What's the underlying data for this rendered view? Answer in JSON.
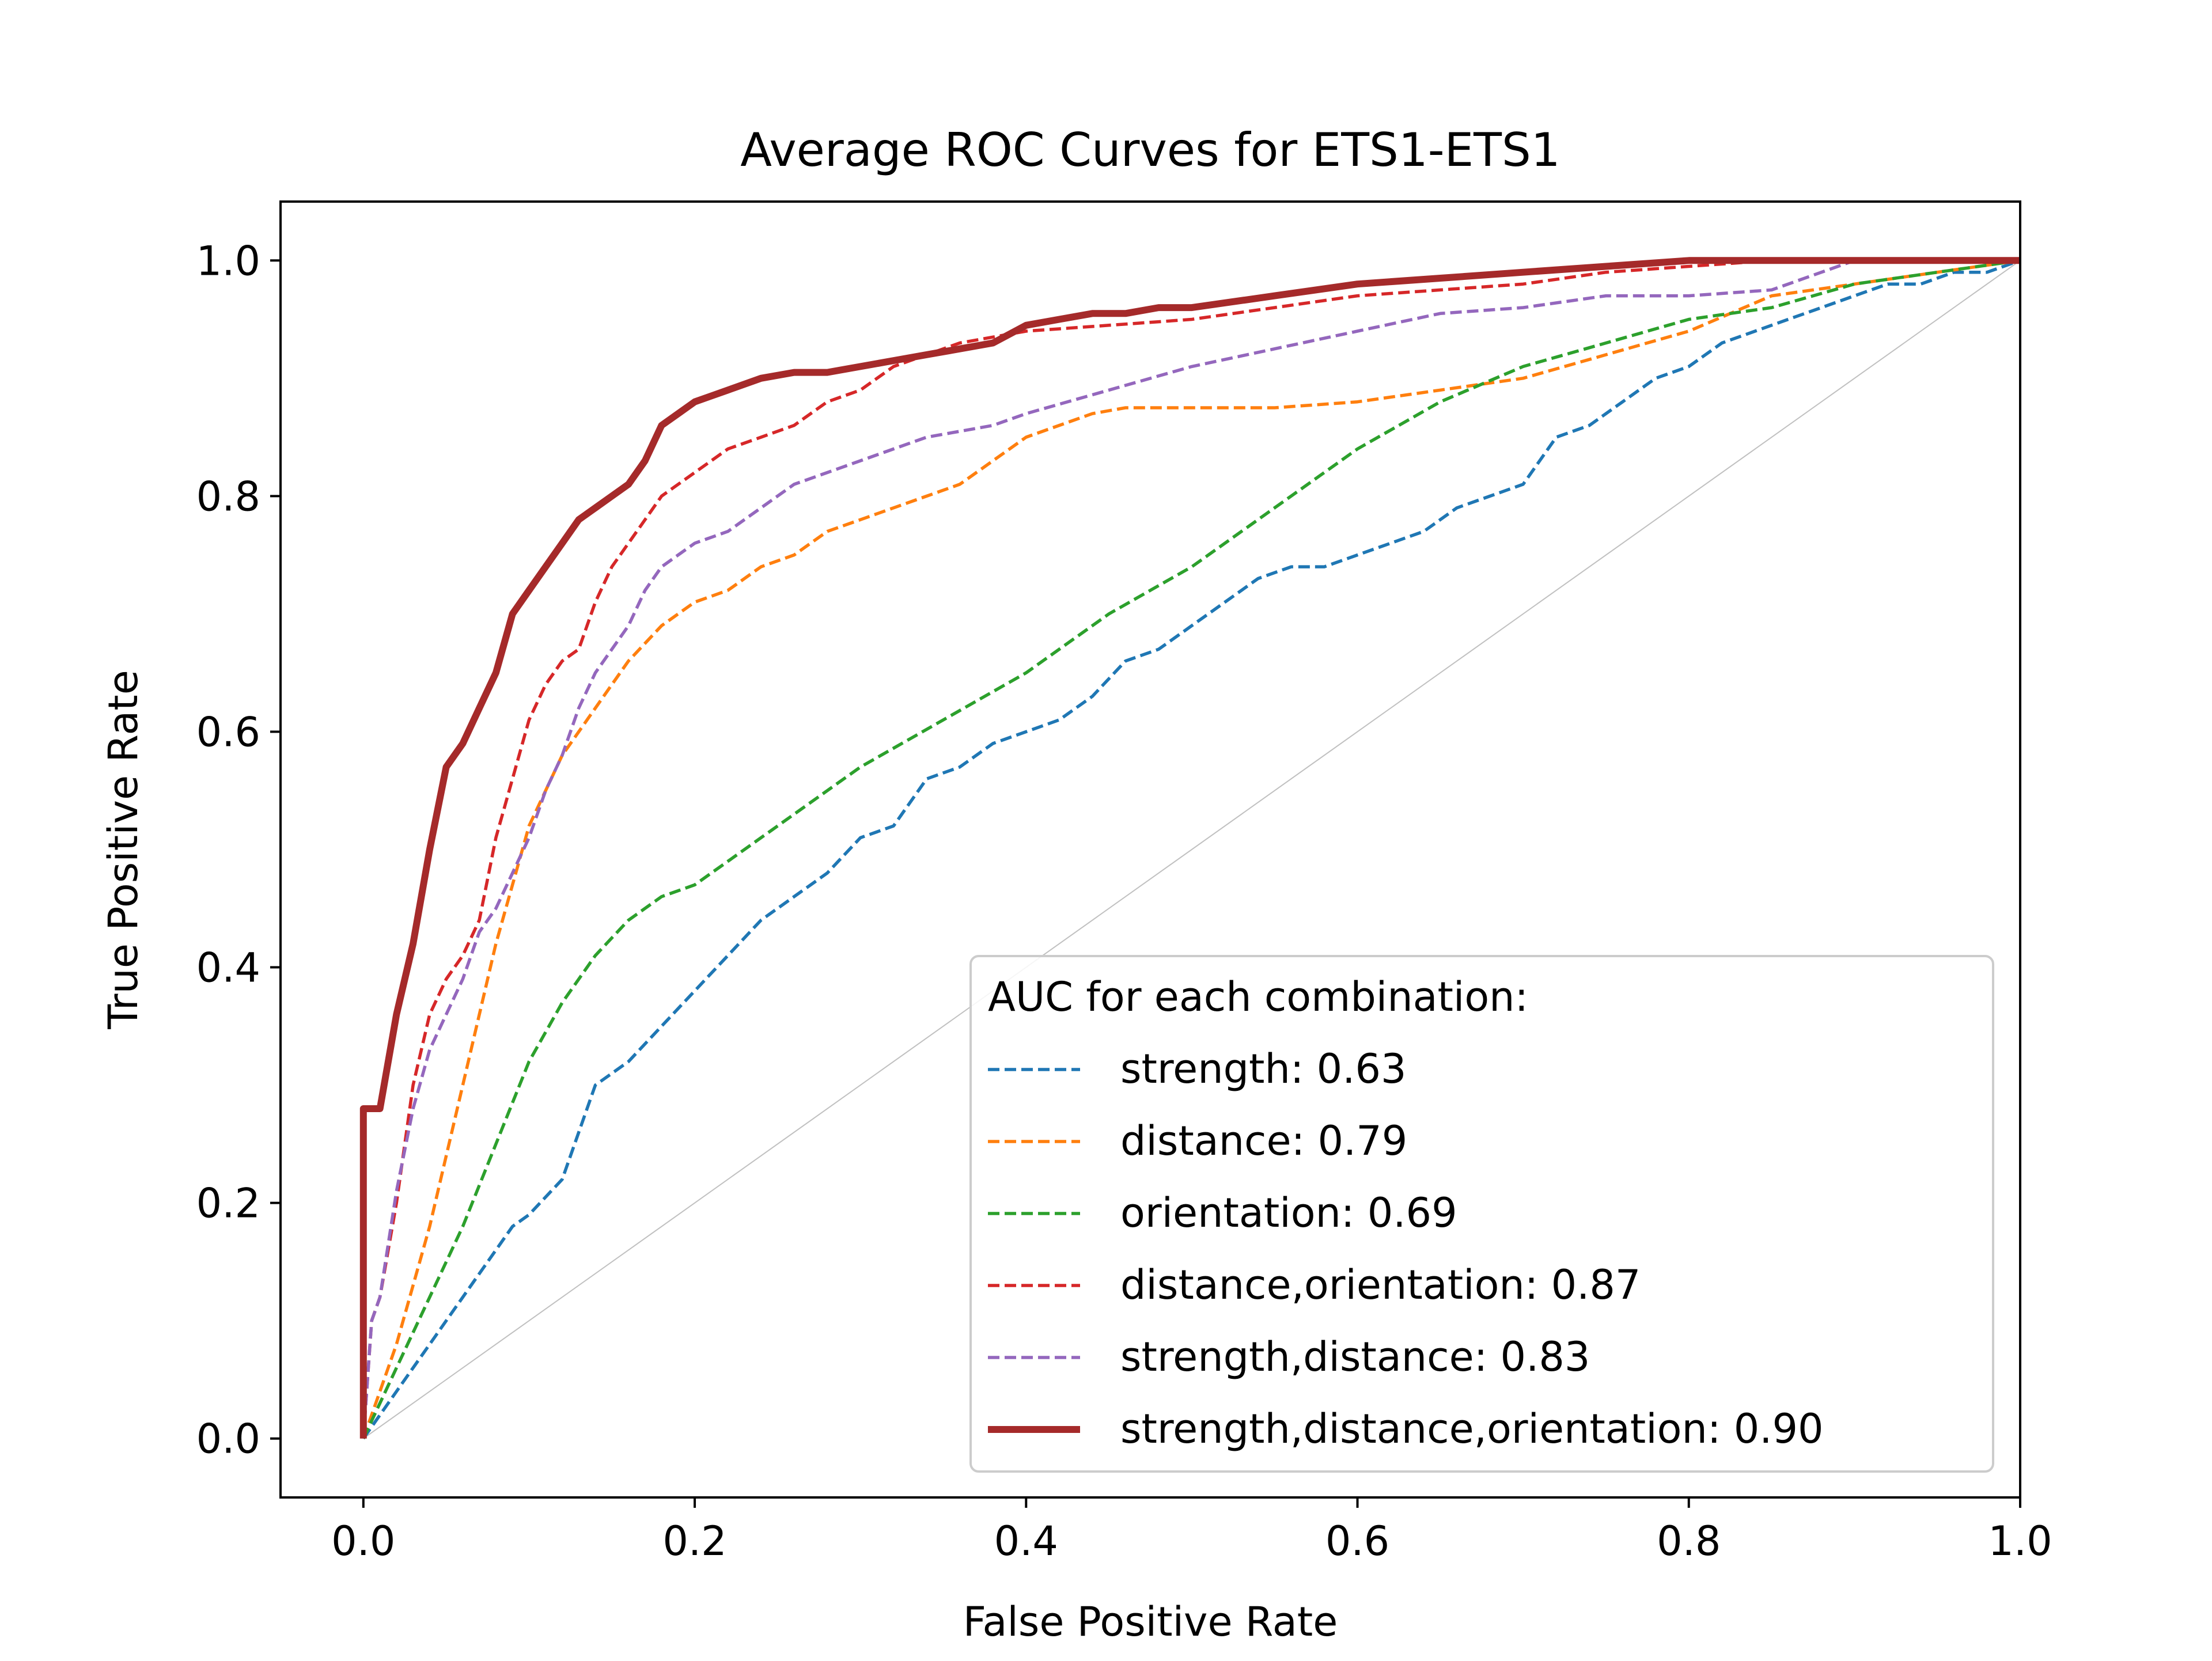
{
  "chart_data": {
    "type": "line",
    "title": "Average ROC Curves for ETS1-ETS1",
    "xlabel": "False Positive Rate",
    "ylabel": "True Positive Rate",
    "xlim": [
      -0.05,
      1.0
    ],
    "ylim": [
      -0.05,
      1.05
    ],
    "xticks": [
      0.0,
      0.2,
      0.4,
      0.6,
      0.8,
      1.0
    ],
    "xtick_labels": [
      "0.0",
      "0.2",
      "0.4",
      "0.6",
      "0.8",
      "1.0"
    ],
    "yticks": [
      0.0,
      0.2,
      0.4,
      0.6,
      0.8,
      1.0
    ],
    "ytick_labels": [
      "0.0",
      "0.2",
      "0.4",
      "0.6",
      "0.8",
      "1.0"
    ],
    "grid": false,
    "legend": {
      "title": "AUC for each combination:",
      "placement": "lower-right"
    },
    "reference_line": {
      "x": [
        0,
        1
      ],
      "y": [
        0,
        1
      ],
      "color": "#c0c0c0"
    },
    "series": [
      {
        "name": "strength: 0.63",
        "color": "#1f77b4",
        "style": "dashed",
        "x": [
          0.0,
          0.01,
          0.02,
          0.03,
          0.04,
          0.05,
          0.06,
          0.07,
          0.08,
          0.09,
          0.1,
          0.12,
          0.14,
          0.16,
          0.18,
          0.2,
          0.22,
          0.24,
          0.26,
          0.28,
          0.3,
          0.32,
          0.34,
          0.36,
          0.38,
          0.4,
          0.42,
          0.44,
          0.46,
          0.48,
          0.5,
          0.52,
          0.54,
          0.56,
          0.58,
          0.6,
          0.62,
          0.64,
          0.66,
          0.68,
          0.7,
          0.72,
          0.74,
          0.76,
          0.78,
          0.8,
          0.82,
          0.84,
          0.86,
          0.88,
          0.9,
          0.92,
          0.94,
          0.96,
          0.98,
          1.0
        ],
        "y": [
          0.0,
          0.02,
          0.04,
          0.06,
          0.08,
          0.1,
          0.12,
          0.14,
          0.16,
          0.18,
          0.19,
          0.22,
          0.3,
          0.32,
          0.35,
          0.38,
          0.41,
          0.44,
          0.46,
          0.48,
          0.51,
          0.52,
          0.56,
          0.57,
          0.59,
          0.6,
          0.61,
          0.63,
          0.66,
          0.67,
          0.69,
          0.71,
          0.73,
          0.74,
          0.74,
          0.75,
          0.76,
          0.77,
          0.79,
          0.8,
          0.81,
          0.85,
          0.86,
          0.88,
          0.9,
          0.91,
          0.93,
          0.94,
          0.95,
          0.96,
          0.97,
          0.98,
          0.98,
          0.99,
          0.99,
          1.0
        ]
      },
      {
        "name": "distance: 0.79",
        "color": "#ff7f0e",
        "style": "dashed",
        "x": [
          0.0,
          0.02,
          0.04,
          0.06,
          0.08,
          0.1,
          0.12,
          0.14,
          0.16,
          0.18,
          0.2,
          0.22,
          0.24,
          0.26,
          0.28,
          0.3,
          0.32,
          0.34,
          0.36,
          0.38,
          0.4,
          0.42,
          0.44,
          0.46,
          0.48,
          0.5,
          0.55,
          0.6,
          0.65,
          0.7,
          0.75,
          0.8,
          0.85,
          0.9,
          0.95,
          1.0
        ],
        "y": [
          0.0,
          0.08,
          0.18,
          0.3,
          0.42,
          0.52,
          0.58,
          0.62,
          0.66,
          0.69,
          0.71,
          0.72,
          0.74,
          0.75,
          0.77,
          0.78,
          0.79,
          0.8,
          0.81,
          0.83,
          0.85,
          0.86,
          0.87,
          0.875,
          0.875,
          0.875,
          0.875,
          0.88,
          0.89,
          0.9,
          0.92,
          0.94,
          0.97,
          0.98,
          0.99,
          1.0
        ]
      },
      {
        "name": "orientation: 0.69",
        "color": "#2ca02c",
        "style": "dashed",
        "x": [
          0.0,
          0.02,
          0.04,
          0.06,
          0.08,
          0.1,
          0.12,
          0.14,
          0.16,
          0.18,
          0.2,
          0.25,
          0.3,
          0.35,
          0.4,
          0.45,
          0.5,
          0.55,
          0.6,
          0.65,
          0.7,
          0.75,
          0.8,
          0.85,
          0.9,
          0.95,
          1.0
        ],
        "y": [
          0.0,
          0.06,
          0.12,
          0.18,
          0.25,
          0.32,
          0.37,
          0.41,
          0.44,
          0.46,
          0.47,
          0.52,
          0.57,
          0.61,
          0.65,
          0.7,
          0.74,
          0.79,
          0.84,
          0.88,
          0.91,
          0.93,
          0.95,
          0.96,
          0.98,
          0.99,
          1.0
        ]
      },
      {
        "name": "distance,orientation: 0.87",
        "color": "#d62728",
        "style": "dashed",
        "x": [
          0.0,
          0.005,
          0.01,
          0.02,
          0.03,
          0.04,
          0.05,
          0.06,
          0.07,
          0.08,
          0.09,
          0.1,
          0.11,
          0.12,
          0.13,
          0.14,
          0.15,
          0.16,
          0.17,
          0.18,
          0.2,
          0.22,
          0.24,
          0.26,
          0.28,
          0.3,
          0.32,
          0.34,
          0.36,
          0.4,
          0.45,
          0.5,
          0.55,
          0.6,
          0.65,
          0.7,
          0.75,
          0.8,
          0.85,
          0.9,
          0.95,
          1.0
        ],
        "y": [
          0.0,
          0.1,
          0.12,
          0.2,
          0.3,
          0.36,
          0.39,
          0.41,
          0.44,
          0.51,
          0.56,
          0.61,
          0.64,
          0.66,
          0.67,
          0.71,
          0.74,
          0.76,
          0.78,
          0.8,
          0.82,
          0.84,
          0.85,
          0.86,
          0.88,
          0.89,
          0.91,
          0.92,
          0.93,
          0.94,
          0.945,
          0.95,
          0.96,
          0.97,
          0.975,
          0.98,
          0.99,
          0.995,
          1.0,
          1.0,
          1.0,
          1.0
        ]
      },
      {
        "name": "strength,distance: 0.83",
        "color": "#9467bd",
        "style": "dashed",
        "x": [
          0.0,
          0.005,
          0.01,
          0.02,
          0.03,
          0.04,
          0.05,
          0.06,
          0.07,
          0.08,
          0.09,
          0.1,
          0.11,
          0.12,
          0.13,
          0.14,
          0.15,
          0.16,
          0.17,
          0.18,
          0.2,
          0.22,
          0.24,
          0.26,
          0.28,
          0.3,
          0.32,
          0.34,
          0.36,
          0.38,
          0.4,
          0.45,
          0.5,
          0.55,
          0.6,
          0.65,
          0.7,
          0.75,
          0.8,
          0.85,
          0.88,
          0.9,
          0.95,
          1.0
        ],
        "y": [
          0.0,
          0.1,
          0.12,
          0.21,
          0.28,
          0.33,
          0.36,
          0.39,
          0.43,
          0.45,
          0.48,
          0.51,
          0.55,
          0.58,
          0.62,
          0.65,
          0.67,
          0.69,
          0.72,
          0.74,
          0.76,
          0.77,
          0.79,
          0.81,
          0.82,
          0.83,
          0.84,
          0.85,
          0.855,
          0.86,
          0.87,
          0.89,
          0.91,
          0.925,
          0.94,
          0.955,
          0.96,
          0.97,
          0.97,
          0.975,
          0.99,
          1.0,
          1.0,
          1.0
        ]
      },
      {
        "name": "strength,distance,orientation: 0.90",
        "color": "#a52a2a",
        "style": "solid",
        "x": [
          0.0,
          0.0,
          0.01,
          0.02,
          0.03,
          0.04,
          0.05,
          0.06,
          0.07,
          0.08,
          0.09,
          0.1,
          0.11,
          0.12,
          0.13,
          0.14,
          0.15,
          0.16,
          0.17,
          0.18,
          0.19,
          0.2,
          0.21,
          0.22,
          0.24,
          0.26,
          0.28,
          0.3,
          0.32,
          0.34,
          0.36,
          0.38,
          0.4,
          0.42,
          0.44,
          0.46,
          0.48,
          0.5,
          0.55,
          0.6,
          0.65,
          0.7,
          0.75,
          0.8,
          0.85,
          0.9,
          1.0
        ],
        "y": [
          0.0,
          0.28,
          0.28,
          0.36,
          0.42,
          0.5,
          0.57,
          0.59,
          0.62,
          0.65,
          0.7,
          0.72,
          0.74,
          0.76,
          0.78,
          0.79,
          0.8,
          0.81,
          0.83,
          0.86,
          0.87,
          0.88,
          0.885,
          0.89,
          0.9,
          0.905,
          0.905,
          0.91,
          0.915,
          0.92,
          0.925,
          0.93,
          0.945,
          0.95,
          0.955,
          0.955,
          0.96,
          0.96,
          0.97,
          0.98,
          0.985,
          0.99,
          0.995,
          1.0,
          1.0,
          1.0,
          1.0
        ]
      }
    ]
  }
}
